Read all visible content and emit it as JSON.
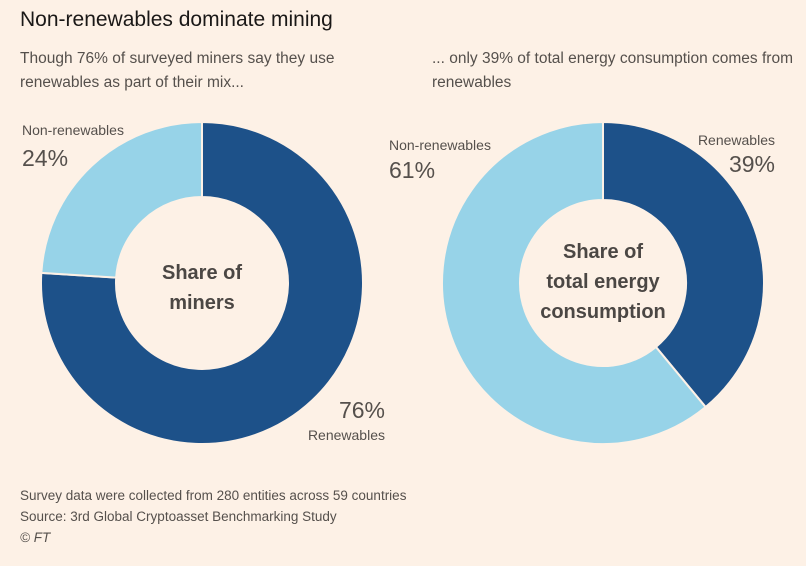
{
  "title": "Non-renewables dominate mining",
  "subtitle_left": "Though 76% of surveyed miners say they use renewables as part of their mix...",
  "subtitle_right": "... only 39% of total energy consumption comes from renewables",
  "colors": {
    "renewables": "#1d5189",
    "non_renewables": "#97d3e8",
    "background": "#fdf1e6"
  },
  "chart_data": [
    {
      "type": "pie",
      "center_label": [
        "Share of",
        "miners"
      ],
      "slices": [
        {
          "name": "Renewables",
          "value": 76,
          "label": "76%"
        },
        {
          "name": "Non-renewables",
          "value": 24,
          "label": "24%"
        }
      ]
    },
    {
      "type": "pie",
      "center_label": [
        "Share of",
        "total energy",
        "consumption"
      ],
      "slices": [
        {
          "name": "Renewables",
          "value": 39,
          "label": "39%"
        },
        {
          "name": "Non-renewables",
          "value": 61,
          "label": "61%"
        }
      ]
    }
  ],
  "footer": {
    "note": "Survey data were collected from 280 entities across 59 countries",
    "source": "Source: 3rd Global Cryptoasset Benchmarking Study",
    "copyright": "© FT"
  }
}
